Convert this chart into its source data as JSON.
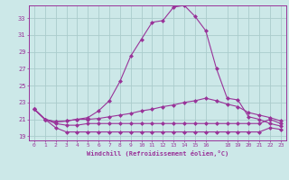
{
  "xlabel": "Windchill (Refroidissement éolien,°C)",
  "bg_color": "#cce8e8",
  "grid_color": "#aacccc",
  "line_color": "#993399",
  "xlim": [
    -0.5,
    23.5
  ],
  "ylim": [
    18.5,
    34.5
  ],
  "xticks": [
    0,
    1,
    2,
    3,
    4,
    5,
    6,
    7,
    8,
    9,
    10,
    11,
    12,
    13,
    14,
    15,
    16,
    18,
    19,
    20,
    21,
    22,
    23
  ],
  "yticks": [
    19,
    21,
    23,
    25,
    27,
    29,
    31,
    33
  ],
  "line1_x": [
    0,
    1,
    2,
    3,
    4,
    5,
    6,
    7,
    8,
    9,
    10,
    11,
    12,
    13,
    14,
    15,
    16,
    17,
    18,
    19,
    20,
    21,
    22,
    23
  ],
  "line1_y": [
    22.2,
    21.0,
    20.7,
    20.8,
    21.0,
    21.2,
    22.0,
    23.2,
    25.5,
    28.5,
    30.5,
    32.5,
    32.7,
    34.3,
    34.5,
    33.2,
    31.5,
    27.0,
    23.5,
    23.3,
    21.3,
    21.0,
    20.5,
    20.2
  ],
  "line2_x": [
    0,
    1,
    2,
    3,
    4,
    5,
    6,
    7,
    8,
    9,
    10,
    11,
    12,
    13,
    14,
    15,
    16,
    17,
    18,
    19,
    20,
    21,
    22,
    23
  ],
  "line2_y": [
    22.2,
    21.0,
    20.7,
    20.8,
    21.0,
    21.0,
    21.1,
    21.3,
    21.5,
    21.7,
    22.0,
    22.2,
    22.5,
    22.7,
    23.0,
    23.2,
    23.5,
    23.2,
    22.8,
    22.5,
    21.8,
    21.5,
    21.2,
    20.8
  ],
  "line3_x": [
    0,
    1,
    2,
    3,
    4,
    5,
    6,
    7,
    8,
    9,
    10,
    11,
    12,
    13,
    14,
    15,
    16,
    17,
    18,
    19,
    20,
    21,
    22,
    23
  ],
  "line3_y": [
    22.2,
    21.0,
    20.5,
    20.3,
    20.3,
    20.5,
    20.5,
    20.5,
    20.5,
    20.5,
    20.5,
    20.5,
    20.5,
    20.5,
    20.5,
    20.5,
    20.5,
    20.5,
    20.5,
    20.5,
    20.5,
    20.5,
    21.0,
    20.5
  ],
  "line4_x": [
    0,
    1,
    2,
    3,
    4,
    5,
    6,
    7,
    8,
    9,
    10,
    11,
    12,
    13,
    14,
    15,
    16,
    17,
    18,
    19,
    20,
    21,
    22,
    23
  ],
  "line4_y": [
    22.2,
    21.0,
    20.0,
    19.5,
    19.5,
    19.5,
    19.5,
    19.5,
    19.5,
    19.5,
    19.5,
    19.5,
    19.5,
    19.5,
    19.5,
    19.5,
    19.5,
    19.5,
    19.5,
    19.5,
    19.5,
    19.5,
    20.0,
    19.8
  ]
}
